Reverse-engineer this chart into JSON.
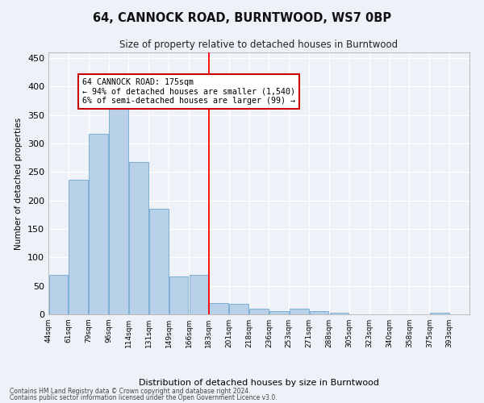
{
  "title": "64, CANNOCK ROAD, BURNTWOOD, WS7 0BP",
  "subtitle": "Size of property relative to detached houses in Burntwood",
  "xlabel": "Distribution of detached houses by size in Burntwood",
  "ylabel": "Number of detached properties",
  "footnote1": "Contains HM Land Registry data © Crown copyright and database right 2024.",
  "footnote2": "Contains public sector information licensed under the Open Government Licence v3.0.",
  "annotation_title": "64 CANNOCK ROAD: 175sqm",
  "annotation_line1": "← 94% of detached houses are smaller (1,540)",
  "annotation_line2": "6% of semi-detached houses are larger (99) →",
  "bar_color": "#b8d0e8",
  "bar_edge_color": "#7aafd4",
  "vline_color": "red",
  "vline_x": 7.5,
  "categories": [
    "44sqm",
    "61sqm",
    "79sqm",
    "96sqm",
    "114sqm",
    "131sqm",
    "149sqm",
    "166sqm",
    "183sqm",
    "201sqm",
    "218sqm",
    "236sqm",
    "253sqm",
    "271sqm",
    "288sqm",
    "305sqm",
    "323sqm",
    "340sqm",
    "358sqm",
    "375sqm",
    "393sqm"
  ],
  "values": [
    70,
    237,
    317,
    370,
    268,
    185,
    67,
    70,
    20,
    19,
    10,
    6,
    10,
    5,
    3,
    0,
    0,
    0,
    0,
    3,
    0
  ],
  "ylim": [
    0,
    460
  ],
  "yticks": [
    0,
    50,
    100,
    150,
    200,
    250,
    300,
    350,
    400,
    450
  ],
  "background_color": "#eef2f8",
  "grid_color": "#ffffff",
  "annotation_box_color": "#ffffff",
  "annotation_box_edge": "#cc0000",
  "fig_width": 6.0,
  "fig_height": 5.0,
  "dpi": 100
}
